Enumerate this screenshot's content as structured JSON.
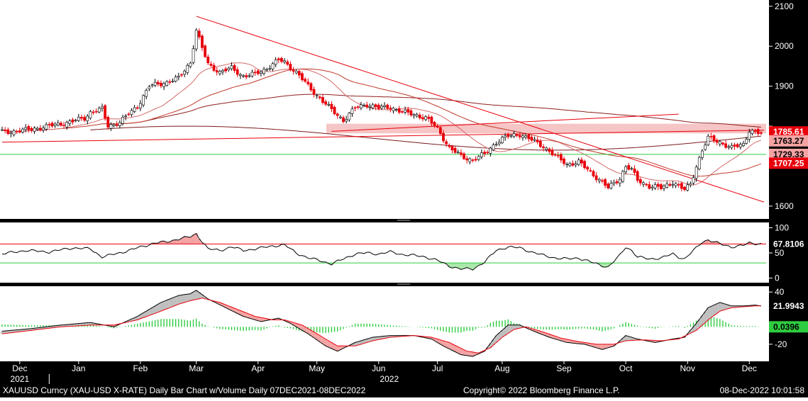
{
  "footer": {
    "left": "XAUUSD Curncy (XAU-USD X-RATE) Daily Bar Chart w/Volume  Daily 07DEC2021-08DEC2022",
    "center": "Copyright© 2022 Bloomberg Finance L.P.",
    "right": "08-Dec-2022 10:01:58"
  },
  "colors": {
    "background": "#ffffff",
    "axis_panel": "#000000",
    "candle_up": "#ffffff",
    "candle_down": "#e8000b",
    "ma_line": "#c0392b",
    "support_line": "#2ecc40",
    "trend_line": "#e8000b",
    "badge_red": "#e8000b",
    "badge_pink": "#f4a3a3",
    "badge_green": "#2ecc40"
  },
  "chart_data": [
    {
      "type": "candlestick",
      "panel": "price",
      "title": "XAUUSD Curncy (XAU-USD X-RATE) Daily Bar Chart w/Volume",
      "ylim": [
        1575,
        2105
      ],
      "yticks": [
        1600,
        1700,
        1800,
        1900,
        2000,
        2100
      ],
      "ytick_labels": [
        "1600",
        "",
        "",
        "1900",
        "2000",
        "2100"
      ],
      "x_months": [
        "Dec",
        "Jan",
        "Feb",
        "Mar",
        "Apr",
        "May",
        "Jun",
        "Jul",
        "Aug",
        "Sep",
        "Oct",
        "Nov",
        "Dec"
      ],
      "x_year_labels": [
        "2021",
        "2022"
      ],
      "close_path": [
        [
          0,
          1785
        ],
        [
          8,
          1790
        ],
        [
          16,
          1800
        ],
        [
          24,
          1812
        ],
        [
          28,
          1820
        ],
        [
          30,
          1835
        ],
        [
          34,
          1842
        ],
        [
          36,
          1800
        ],
        [
          40,
          1810
        ],
        [
          46,
          1850
        ],
        [
          50,
          1900
        ],
        [
          56,
          1910
        ],
        [
          60,
          1920
        ],
        [
          62,
          1940
        ],
        [
          64,
          1960
        ],
        [
          66,
          2040
        ],
        [
          68,
          1995
        ],
        [
          70,
          1955
        ],
        [
          74,
          1935
        ],
        [
          78,
          1945
        ],
        [
          82,
          1925
        ],
        [
          86,
          1930
        ],
        [
          90,
          1945
        ],
        [
          94,
          1965
        ],
        [
          96,
          1960
        ],
        [
          100,
          1935
        ],
        [
          104,
          1900
        ],
        [
          108,
          1870
        ],
        [
          112,
          1840
        ],
        [
          116,
          1815
        ],
        [
          120,
          1845
        ],
        [
          124,
          1855
        ],
        [
          128,
          1845
        ],
        [
          132,
          1848
        ],
        [
          136,
          1835
        ],
        [
          140,
          1830
        ],
        [
          144,
          1820
        ],
        [
          148,
          1795
        ],
        [
          152,
          1745
        ],
        [
          156,
          1725
        ],
        [
          160,
          1715
        ],
        [
          164,
          1730
        ],
        [
          168,
          1760
        ],
        [
          172,
          1775
        ],
        [
          176,
          1780
        ],
        [
          180,
          1765
        ],
        [
          184,
          1750
        ],
        [
          188,
          1725
        ],
        [
          192,
          1705
        ],
        [
          196,
          1710
        ],
        [
          200,
          1685
        ],
        [
          204,
          1660
        ],
        [
          206,
          1645
        ],
        [
          210,
          1670
        ],
        [
          212,
          1700
        ],
        [
          214,
          1690
        ],
        [
          216,
          1665
        ],
        [
          220,
          1650
        ],
        [
          224,
          1645
        ],
        [
          228,
          1660
        ],
        [
          230,
          1650
        ],
        [
          232,
          1640
        ],
        [
          234,
          1655
        ],
        [
          236,
          1700
        ],
        [
          238,
          1740
        ],
        [
          240,
          1770
        ],
        [
          244,
          1760
        ],
        [
          248,
          1745
        ],
        [
          252,
          1755
        ],
        [
          254,
          1790
        ],
        [
          256,
          1785
        ],
        [
          258,
          1780
        ]
      ],
      "badges": [
        {
          "value": "1785.61",
          "style": "red"
        },
        {
          "value": "1763.27",
          "style": "pink"
        },
        {
          "value": "1729.33",
          "style": "pink"
        },
        {
          "value": "1707.25",
          "style": "red"
        }
      ],
      "moving_averages": [
        "short",
        "medium",
        "long",
        "extra-long"
      ],
      "horizontal_lines": [
        {
          "y": 1729.33,
          "color": "green"
        }
      ],
      "shaded_band": [
        1782,
        1806
      ],
      "trendlines": [
        {
          "from": [
            66,
            2075
          ],
          "to": [
            259,
            1610
          ]
        },
        {
          "from": [
            0,
            1760
          ],
          "to": [
            259,
            1790
          ]
        },
        {
          "from": [
            112,
            1787
          ],
          "to": [
            230,
            1830
          ]
        }
      ]
    },
    {
      "type": "line",
      "panel": "rsi",
      "ylim": [
        -5,
        105
      ],
      "yticks": [
        0,
        50,
        100
      ],
      "ytick_labels": [
        "0",
        "50",
        "100"
      ],
      "upper_line": 67.81,
      "lower_line": 30,
      "last_value": "67.8106",
      "series": [
        [
          0,
          48
        ],
        [
          8,
          55
        ],
        [
          16,
          52
        ],
        [
          24,
          60
        ],
        [
          30,
          58
        ],
        [
          34,
          42
        ],
        [
          40,
          50
        ],
        [
          46,
          60
        ],
        [
          52,
          70
        ],
        [
          56,
          72
        ],
        [
          60,
          78
        ],
        [
          64,
          82
        ],
        [
          66,
          88
        ],
        [
          70,
          58
        ],
        [
          74,
          55
        ],
        [
          78,
          62
        ],
        [
          82,
          55
        ],
        [
          86,
          58
        ],
        [
          92,
          64
        ],
        [
          96,
          66
        ],
        [
          100,
          50
        ],
        [
          104,
          40
        ],
        [
          108,
          35
        ],
        [
          112,
          28
        ],
        [
          116,
          38
        ],
        [
          120,
          48
        ],
        [
          124,
          50
        ],
        [
          128,
          48
        ],
        [
          132,
          52
        ],
        [
          136,
          47
        ],
        [
          140,
          45
        ],
        [
          144,
          42
        ],
        [
          148,
          35
        ],
        [
          152,
          24
        ],
        [
          156,
          18
        ],
        [
          160,
          18
        ],
        [
          164,
          32
        ],
        [
          168,
          55
        ],
        [
          172,
          62
        ],
        [
          176,
          60
        ],
        [
          180,
          52
        ],
        [
          184,
          45
        ],
        [
          188,
          40
        ],
        [
          192,
          38
        ],
        [
          196,
          40
        ],
        [
          200,
          32
        ],
        [
          204,
          25
        ],
        [
          206,
          22
        ],
        [
          210,
          45
        ],
        [
          212,
          62
        ],
        [
          214,
          55
        ],
        [
          216,
          42
        ],
        [
          220,
          38
        ],
        [
          224,
          40
        ],
        [
          228,
          48
        ],
        [
          230,
          42
        ],
        [
          232,
          38
        ],
        [
          236,
          60
        ],
        [
          238,
          72
        ],
        [
          240,
          76
        ],
        [
          244,
          68
        ],
        [
          248,
          62
        ],
        [
          252,
          65
        ],
        [
          254,
          70
        ],
        [
          258,
          68
        ]
      ]
    },
    {
      "type": "line",
      "panel": "macd",
      "ylim": [
        -38,
        45
      ],
      "yticks": [
        -20,
        40
      ],
      "ytick_labels": [
        "-20",
        "40"
      ],
      "last_value": "21.9943",
      "histogram_last": "0.0396",
      "series": [
        {
          "name": "macd",
          "values": [
            [
              0,
              -5
            ],
            [
              10,
              -2
            ],
            [
              20,
              2
            ],
            [
              30,
              5
            ],
            [
              38,
              0
            ],
            [
              46,
              12
            ],
            [
              54,
              28
            ],
            [
              60,
              36
            ],
            [
              64,
              38
            ],
            [
              66,
              42
            ],
            [
              70,
              32
            ],
            [
              76,
              22
            ],
            [
              82,
              12
            ],
            [
              88,
              6
            ],
            [
              94,
              10
            ],
            [
              98,
              4
            ],
            [
              104,
              -8
            ],
            [
              110,
              -22
            ],
            [
              114,
              -28
            ],
            [
              120,
              -18
            ],
            [
              126,
              -12
            ],
            [
              132,
              -10
            ],
            [
              140,
              -10
            ],
            [
              146,
              -14
            ],
            [
              150,
              -22
            ],
            [
              156,
              -32
            ],
            [
              160,
              -34
            ],
            [
              164,
              -28
            ],
            [
              168,
              -10
            ],
            [
              172,
              2
            ],
            [
              176,
              2
            ],
            [
              180,
              -4
            ],
            [
              186,
              -12
            ],
            [
              192,
              -18
            ],
            [
              198,
              -20
            ],
            [
              204,
              -26
            ],
            [
              208,
              -22
            ],
            [
              212,
              -10
            ],
            [
              216,
              -14
            ],
            [
              222,
              -18
            ],
            [
              228,
              -14
            ],
            [
              232,
              -12
            ],
            [
              236,
              4
            ],
            [
              240,
              22
            ],
            [
              244,
              28
            ],
            [
              248,
              24
            ],
            [
              252,
              24
            ],
            [
              256,
              25
            ],
            [
              258,
              24
            ]
          ]
        },
        {
          "name": "signal",
          "values": [
            [
              0,
              -8
            ],
            [
              10,
              -4
            ],
            [
              20,
              0
            ],
            [
              30,
              2
            ],
            [
              38,
              2
            ],
            [
              46,
              8
            ],
            [
              54,
              18
            ],
            [
              60,
              26
            ],
            [
              64,
              30
            ],
            [
              68,
              33
            ],
            [
              74,
              28
            ],
            [
              80,
              20
            ],
            [
              86,
              12
            ],
            [
              92,
              8
            ],
            [
              96,
              8
            ],
            [
              102,
              2
            ],
            [
              108,
              -10
            ],
            [
              114,
              -22
            ],
            [
              120,
              -22
            ],
            [
              126,
              -16
            ],
            [
              132,
              -12
            ],
            [
              140,
              -10
            ],
            [
              146,
              -12
            ],
            [
              152,
              -18
            ],
            [
              158,
              -28
            ],
            [
              162,
              -30
            ],
            [
              166,
              -24
            ],
            [
              170,
              -12
            ],
            [
              174,
              -3
            ],
            [
              178,
              0
            ],
            [
              184,
              -6
            ],
            [
              190,
              -13
            ],
            [
              196,
              -17
            ],
            [
              202,
              -20
            ],
            [
              208,
              -20
            ],
            [
              212,
              -16
            ],
            [
              218,
              -15
            ],
            [
              224,
              -16
            ],
            [
              230,
              -14
            ],
            [
              236,
              -4
            ],
            [
              240,
              8
            ],
            [
              244,
              18
            ],
            [
              248,
              22
            ],
            [
              252,
              23
            ],
            [
              256,
              24
            ],
            [
              258,
              24
            ]
          ]
        }
      ]
    }
  ]
}
